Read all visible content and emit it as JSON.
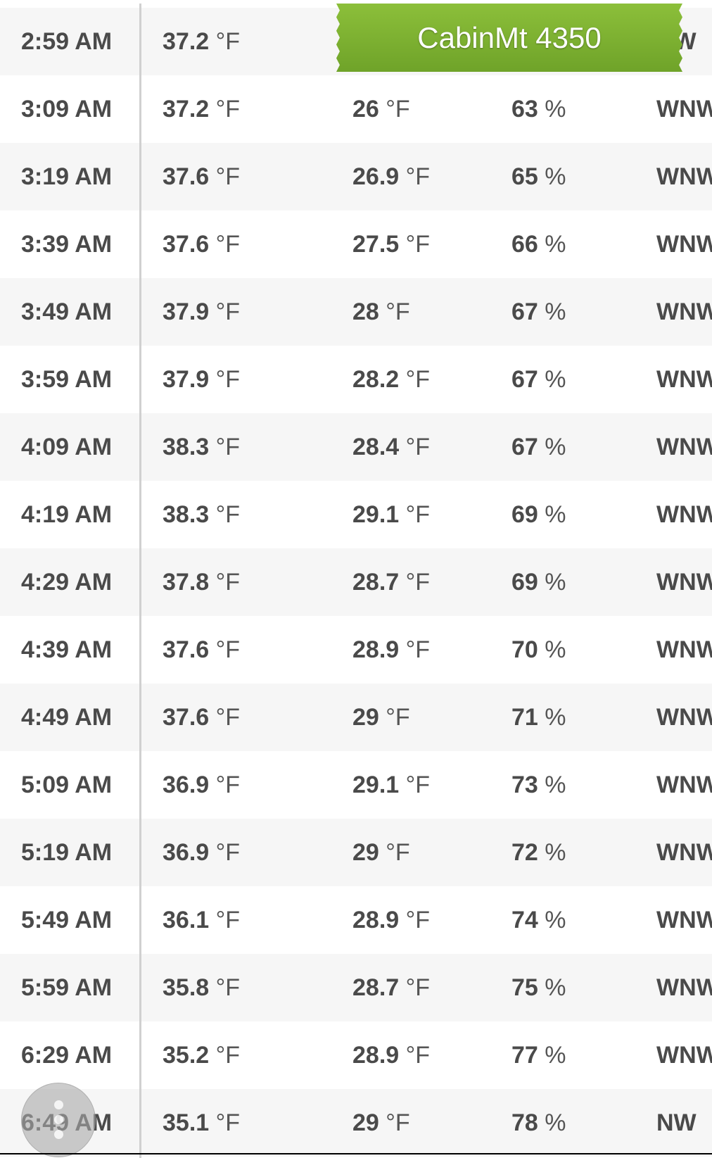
{
  "station_banner": {
    "label": "CabinMt 4350",
    "color": "#7cb232"
  },
  "rows": [
    {
      "time": "2:59 AM",
      "temp": "37.2",
      "dew": "",
      "hum": "",
      "wind": "NW"
    },
    {
      "time": "3:09 AM",
      "temp": "37.2",
      "dew": "26",
      "hum": "63",
      "wind": "WNW"
    },
    {
      "time": "3:19 AM",
      "temp": "37.6",
      "dew": "26.9",
      "hum": "65",
      "wind": "WNW"
    },
    {
      "time": "3:39 AM",
      "temp": "37.6",
      "dew": "27.5",
      "hum": "66",
      "wind": "WNW"
    },
    {
      "time": "3:49 AM",
      "temp": "37.9",
      "dew": "28",
      "hum": "67",
      "wind": "WNW"
    },
    {
      "time": "3:59 AM",
      "temp": "37.9",
      "dew": "28.2",
      "hum": "67",
      "wind": "WNW"
    },
    {
      "time": "4:09 AM",
      "temp": "38.3",
      "dew": "28.4",
      "hum": "67",
      "wind": "WNW"
    },
    {
      "time": "4:19 AM",
      "temp": "38.3",
      "dew": "29.1",
      "hum": "69",
      "wind": "WNW"
    },
    {
      "time": "4:29 AM",
      "temp": "37.8",
      "dew": "28.7",
      "hum": "69",
      "wind": "WNW"
    },
    {
      "time": "4:39 AM",
      "temp": "37.6",
      "dew": "28.9",
      "hum": "70",
      "wind": "WNW"
    },
    {
      "time": "4:49 AM",
      "temp": "37.6",
      "dew": "29",
      "hum": "71",
      "wind": "WNW"
    },
    {
      "time": "5:09 AM",
      "temp": "36.9",
      "dew": "29.1",
      "hum": "73",
      "wind": "WNW"
    },
    {
      "time": "5:19 AM",
      "temp": "36.9",
      "dew": "29",
      "hum": "72",
      "wind": "WNW"
    },
    {
      "time": "5:49 AM",
      "temp": "36.1",
      "dew": "28.9",
      "hum": "74",
      "wind": "WNW"
    },
    {
      "time": "5:59 AM",
      "temp": "35.8",
      "dew": "28.7",
      "hum": "75",
      "wind": "WNW"
    },
    {
      "time": "6:29 AM",
      "temp": "35.2",
      "dew": "28.9",
      "hum": "77",
      "wind": "WNW"
    },
    {
      "time": "6:49 AM",
      "temp": "35.1",
      "dew": "29",
      "hum": "78",
      "wind": "NW"
    }
  ],
  "units": {
    "temp": "°F",
    "hum": "%"
  },
  "fab": {
    "icon": "more-vert-icon"
  }
}
